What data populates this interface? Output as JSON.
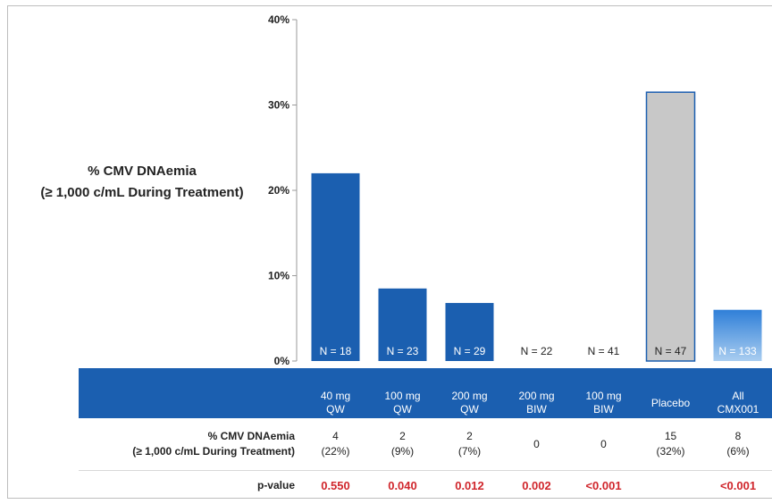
{
  "chart_data": {
    "type": "bar",
    "ylabel_line1": "% CMV DNAemia",
    "ylabel_line2": "(≥ 1,000 c/mL During Treatment)",
    "ylim": [
      0,
      40
    ],
    "yticks": [
      "0%",
      "10%",
      "20%",
      "30%",
      "40%"
    ],
    "categories": [
      "40 mg QW",
      "100 mg QW",
      "200 mg QW",
      "200 mg BIW",
      "100 mg BIW",
      "Placebo",
      "All CMX001"
    ],
    "values": [
      22,
      8.5,
      6.8,
      0,
      0,
      31.5,
      6
    ],
    "n_labels": [
      "N = 18",
      "N = 23",
      "N = 29",
      "N = 22",
      "N = 41",
      "N = 47",
      "N = 133"
    ],
    "colors": [
      "#1b5fb0",
      "#1b5fb0",
      "#1b5fb0",
      "#1b5fb0",
      "#1b5fb0",
      "#c8c8c8",
      "#3f86d6"
    ],
    "grid": false
  },
  "table": {
    "headers": [
      [
        "40 mg",
        "QW"
      ],
      [
        "100 mg",
        "QW"
      ],
      [
        "200 mg",
        "QW"
      ],
      [
        "200 mg",
        "BIW"
      ],
      [
        "100 mg",
        "BIW"
      ],
      [
        "",
        "Placebo"
      ],
      [
        "All",
        "CMX001"
      ]
    ],
    "row1_label_line1": "% CMV DNAemia",
    "row1_label_line2": "(≥ 1,000 c/mL During Treatment)",
    "row1": [
      [
        "4",
        "(22%)"
      ],
      [
        "2",
        "(9%)"
      ],
      [
        "2",
        "(7%)"
      ],
      [
        "0",
        ""
      ],
      [
        "0",
        ""
      ],
      [
        "15",
        "(32%)"
      ],
      [
        "8",
        "(6%)"
      ]
    ],
    "row2_label": "p-value",
    "row2": [
      "0.550",
      "0.040",
      "0.012",
      "0.002",
      "<0.001",
      "",
      "<0.001"
    ]
  }
}
